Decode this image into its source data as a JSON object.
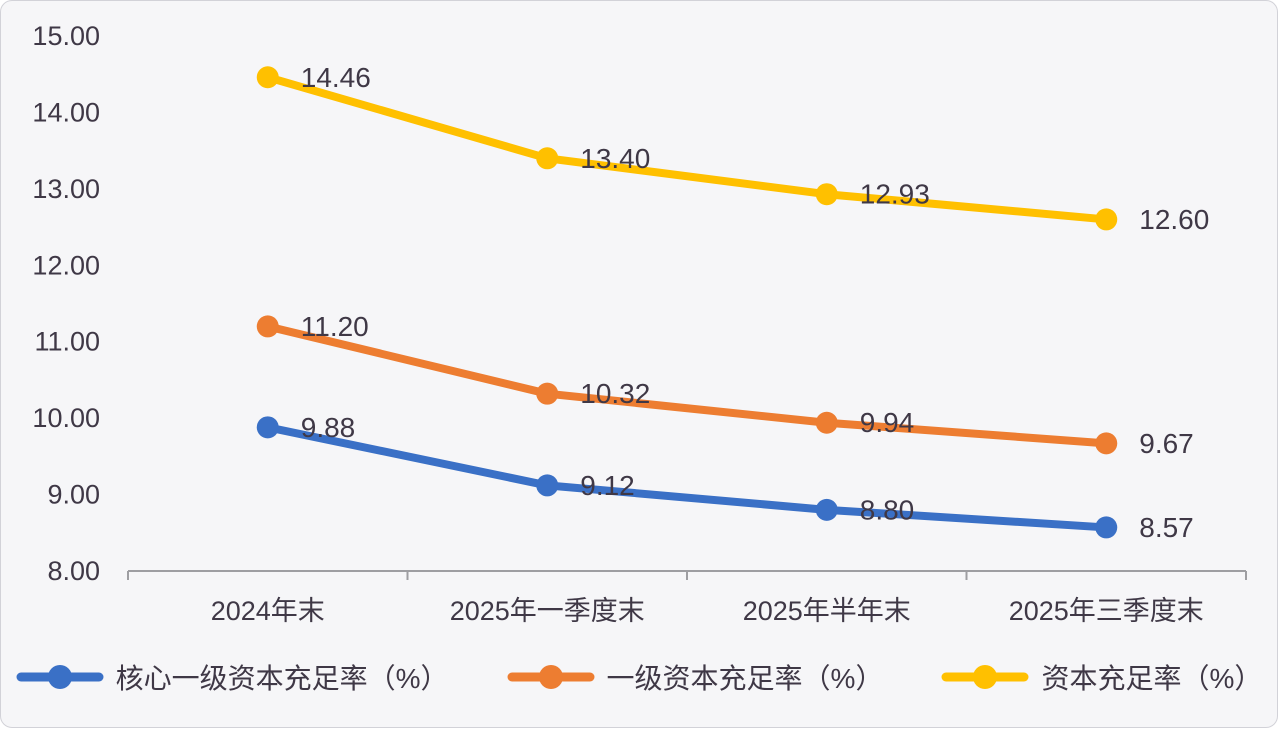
{
  "chart_data": {
    "type": "line",
    "title": "",
    "xlabel": "",
    "ylabel": "",
    "categories": [
      "2024年末",
      "2025年一季度末",
      "2025年半年末",
      "2025年三季度末"
    ],
    "series": [
      {
        "name": "核心一级资本充足率（%）",
        "values": [
          9.88,
          9.12,
          8.8,
          8.57
        ],
        "labels": [
          "9.88",
          "9.12",
          "8.80",
          "8.57"
        ],
        "color": "#3a70c6"
      },
      {
        "name": "一级资本充足率（%）",
        "values": [
          11.2,
          10.32,
          9.94,
          9.67
        ],
        "labels": [
          "11.20",
          "10.32",
          "9.94",
          "9.67"
        ],
        "color": "#ed7d31"
      },
      {
        "name": "资本充足率（%）",
        "values": [
          14.46,
          13.4,
          12.93,
          12.6
        ],
        "labels": [
          "14.46",
          "13.40",
          "12.93",
          "12.60"
        ],
        "color": "#ffc000"
      }
    ],
    "ylim": [
      8,
      15
    ],
    "y_tick_labels": [
      "8.00",
      "9.00",
      "10.00",
      "11.00",
      "12.00",
      "13.00",
      "14.00",
      "15.00"
    ],
    "grid": false,
    "legend_position": "bottom",
    "data_labels_shown": true
  },
  "style": {
    "axis_color": "#9e9ea2",
    "text_color": "#3f3846",
    "background_color": "#f6f6f8"
  }
}
